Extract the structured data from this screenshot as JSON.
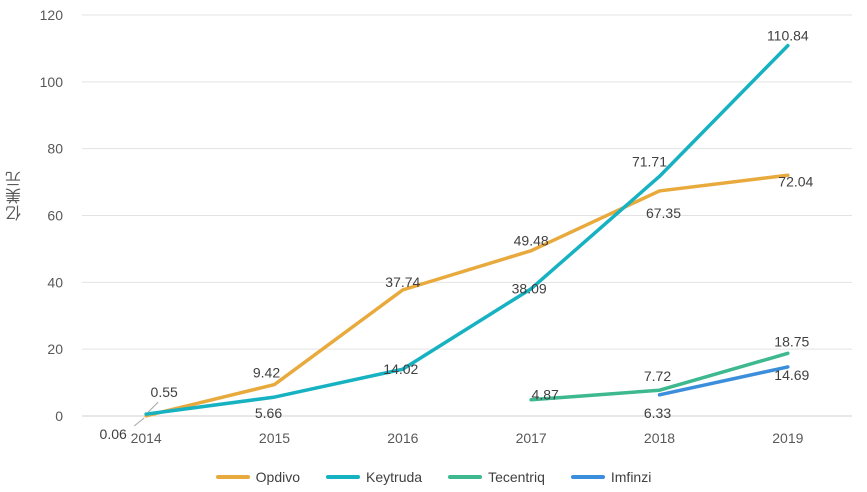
{
  "chart_data": {
    "type": "line",
    "title": "",
    "xlabel": "",
    "ylabel": "亿美元",
    "ylim": [
      0,
      120
    ],
    "yticks": [
      0,
      20,
      40,
      60,
      80,
      100,
      120
    ],
    "grid": true,
    "legend_position": "bottom",
    "categories": [
      "2014",
      "2015",
      "2016",
      "2017",
      "2018",
      "2019"
    ],
    "series": [
      {
        "name": "Opdivo",
        "color": "#E8AA3C",
        "values": [
          0.06,
          9.42,
          37.74,
          49.48,
          67.35,
          72.04
        ],
        "labels": [
          "0.06",
          "9.42",
          "37.74",
          "49.48",
          "67.35",
          "72.04"
        ]
      },
      {
        "name": "Keytruda",
        "color": "#17B2C2",
        "values": [
          0.55,
          5.66,
          14.02,
          38.09,
          71.71,
          110.84
        ],
        "labels": [
          "0.55",
          "5.66",
          "14.02",
          "38.09",
          "71.71",
          "110.84"
        ]
      },
      {
        "name": "Tecentriq",
        "color": "#3DB88F",
        "values": [
          null,
          null,
          null,
          4.87,
          7.72,
          18.75
        ],
        "labels": [
          null,
          null,
          null,
          "4.87",
          "7.72",
          "18.75"
        ]
      },
      {
        "name": "Imfinzi",
        "color": "#3A8EDB",
        "values": [
          null,
          null,
          null,
          null,
          6.33,
          14.69
        ],
        "labels": [
          null,
          null,
          null,
          null,
          "6.33",
          "14.69"
        ]
      }
    ]
  }
}
